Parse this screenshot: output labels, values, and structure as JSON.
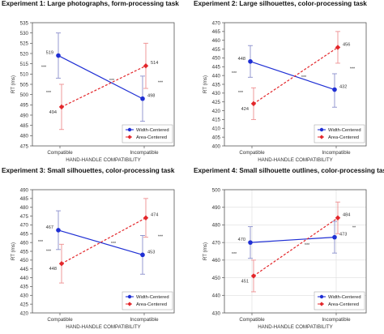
{
  "colors": {
    "width_series": "#1f2fd4",
    "area_series": "#e3262a",
    "errorbar_width": "#8a8fcc",
    "errorbar_area": "#ee8f90",
    "frame": "#555555",
    "grid": "#dddddd"
  },
  "chart_data": [
    {
      "type": "line",
      "title": "Experiment 1: Large photographs, form-processing task",
      "xlabel": "HAND-HANDLE COMPATIBILITY",
      "ylabel": "RT (ms)",
      "categories": [
        "Compatible",
        "Incompatible"
      ],
      "ylim": [
        475,
        535
      ],
      "yticks": [
        "475",
        "480",
        "485",
        "490",
        "495",
        "500",
        "505",
        "510",
        "515",
        "520",
        "525",
        "530",
        "535"
      ],
      "series": [
        {
          "name": "Width-Centered",
          "values": [
            519,
            498
          ],
          "labels": [
            "519",
            "498"
          ],
          "err": [
            [
              508,
              530
            ],
            [
              487,
              509
            ]
          ]
        },
        {
          "name": "Area-Centered",
          "values": [
            494,
            514
          ],
          "labels": [
            "494",
            "514"
          ],
          "err": [
            [
              483,
              505
            ],
            [
              503,
              525
            ]
          ]
        }
      ],
      "annotations": [
        "***",
        "***",
        "***",
        "***"
      ],
      "legend": "bottom-right",
      "grid": false
    },
    {
      "type": "line",
      "title": "Experiment 2: Large silhouettes, color-processing task",
      "xlabel": "HAND-HANDLE COMPATIBILITY",
      "ylabel": "RT (ms)",
      "categories": [
        "Compatible",
        "Incompatible"
      ],
      "ylim": [
        400,
        470
      ],
      "yticks": [
        "400",
        "405",
        "410",
        "415",
        "420",
        "425",
        "430",
        "435",
        "440",
        "445",
        "450",
        "455",
        "460",
        "465",
        "470"
      ],
      "series": [
        {
          "name": "Width-Centered",
          "values": [
            448,
            432
          ],
          "labels": [
            "448",
            "432"
          ],
          "err": [
            [
              439,
              457
            ],
            [
              422,
              441
            ]
          ]
        },
        {
          "name": "Area-Centered",
          "values": [
            424,
            456
          ],
          "labels": [
            "424",
            "456"
          ],
          "err": [
            [
              415,
              433
            ],
            [
              447,
              465
            ]
          ]
        }
      ],
      "annotations": [
        "***",
        "***",
        "***",
        "***"
      ],
      "legend": "bottom-right",
      "grid": false
    },
    {
      "type": "line",
      "title": "Experiment 3: Small silhouettes, color-processing task",
      "xlabel": "HAND-HANDLE COMPATIBILITY",
      "ylabel": "RT (ms)",
      "categories": [
        "Compatible",
        "Incompatible"
      ],
      "ylim": [
        420,
        490
      ],
      "yticks": [
        "420",
        "425",
        "430",
        "435",
        "440",
        "445",
        "450",
        "455",
        "460",
        "465",
        "470",
        "475",
        "480",
        "485",
        "490"
      ],
      "series": [
        {
          "name": "Width-Centered",
          "values": [
            467,
            453
          ],
          "labels": [
            "467",
            "453"
          ],
          "err": [
            [
              456,
              478
            ],
            [
              442,
              464
            ]
          ]
        },
        {
          "name": "Area-Centered",
          "values": [
            448,
            474
          ],
          "labels": [
            "448",
            "474"
          ],
          "err": [
            [
              437,
              459
            ],
            [
              463,
              485
            ]
          ]
        }
      ],
      "annotations": [
        "***",
        "***",
        "***",
        "***"
      ],
      "legend": "bottom-right",
      "grid": false
    },
    {
      "type": "line",
      "title": "Experiment 4: Small silhouette outlines, color-processing task",
      "xlabel": "HAND-HANDLE COMPATIBILITY",
      "ylabel": "RT (ms)",
      "categories": [
        "Compatible",
        "Incompatible"
      ],
      "ylim": [
        430,
        500
      ],
      "yticks": [
        "430",
        "440",
        "450",
        "460",
        "470",
        "480",
        "490",
        "500"
      ],
      "series": [
        {
          "name": "Width-Centered",
          "values": [
            470,
            473
          ],
          "labels": [
            "470",
            "473"
          ],
          "err": [
            [
              461,
              479
            ],
            [
              464,
              482
            ]
          ]
        },
        {
          "name": "Area-Centered",
          "values": [
            451,
            484
          ],
          "labels": [
            "451",
            "484"
          ],
          "err": [
            [
              442,
              460
            ],
            [
              475,
              493
            ]
          ]
        }
      ],
      "annotations": [
        "***",
        "***",
        "**"
      ],
      "legend": "bottom-right",
      "grid": true
    }
  ]
}
